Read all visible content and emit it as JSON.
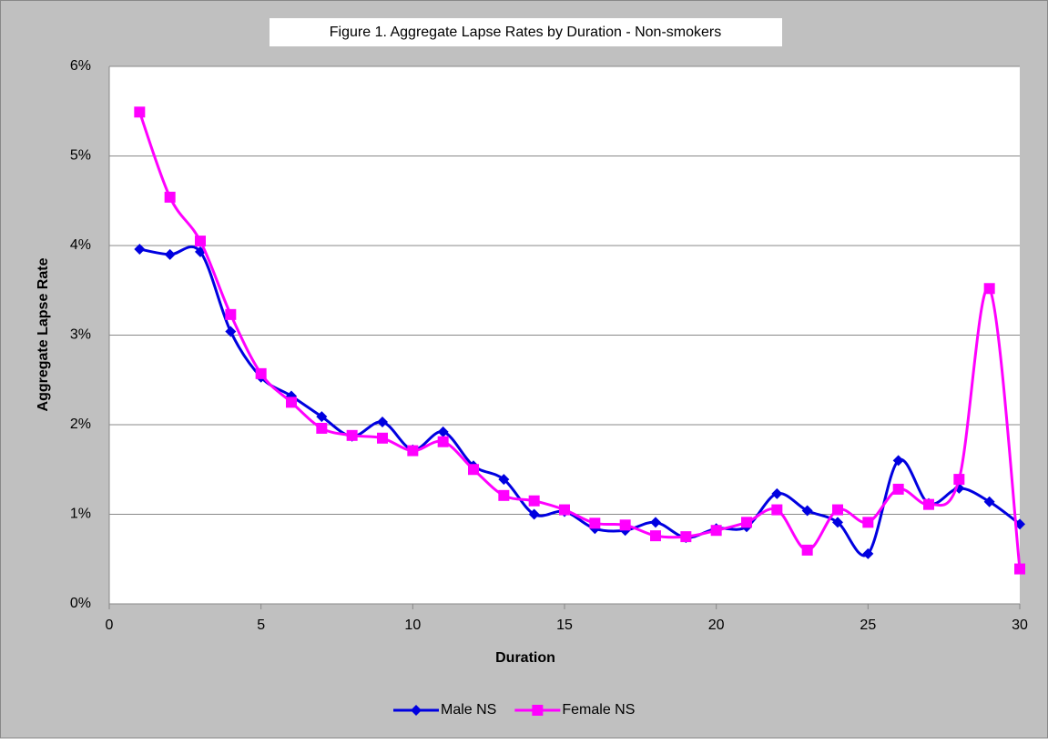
{
  "chart_data": {
    "type": "line",
    "title": "Figure 1. Aggregate Lapse Rates by Duration - Non-smokers",
    "x_label": "Duration",
    "y_label": "Aggregate Lapse Rate",
    "x": [
      1,
      2,
      3,
      4,
      5,
      6,
      7,
      8,
      9,
      10,
      11,
      12,
      13,
      14,
      15,
      16,
      17,
      18,
      19,
      20,
      21,
      22,
      23,
      24,
      25,
      26,
      27,
      28,
      29,
      30
    ],
    "series": [
      {
        "name": "Male NS",
        "color": "#0000e0",
        "marker": "diamond",
        "values": [
          3.96,
          3.9,
          3.93,
          3.04,
          2.53,
          2.32,
          2.09,
          1.87,
          2.03,
          1.72,
          1.92,
          1.54,
          1.39,
          1.0,
          1.03,
          0.84,
          0.82,
          0.91,
          0.74,
          0.84,
          0.86,
          1.23,
          1.04,
          0.91,
          0.56,
          1.6,
          1.12,
          1.29,
          1.14,
          0.89
        ]
      },
      {
        "name": "Female NS",
        "color": "#ff00ff",
        "marker": "square",
        "values": [
          5.49,
          4.54,
          4.05,
          3.23,
          2.57,
          2.25,
          1.96,
          1.88,
          1.85,
          1.71,
          1.81,
          1.5,
          1.21,
          1.15,
          1.05,
          0.9,
          0.88,
          0.76,
          0.75,
          0.82,
          0.91,
          1.05,
          0.6,
          1.05,
          0.91,
          1.28,
          1.11,
          1.39,
          3.52,
          0.39
        ]
      }
    ],
    "xlim": [
      0,
      30
    ],
    "xticks": [
      0,
      5,
      10,
      15,
      20,
      25,
      30
    ],
    "ylim": [
      0,
      6
    ],
    "yticks": [
      {
        "value": 0,
        "label": "0%"
      },
      {
        "value": 1,
        "label": "1%"
      },
      {
        "value": 2,
        "label": "2%"
      },
      {
        "value": 3,
        "label": "3%"
      },
      {
        "value": 4,
        "label": "4%"
      },
      {
        "value": 5,
        "label": "5%"
      },
      {
        "value": 6,
        "label": "6%"
      }
    ],
    "grid": true,
    "smooth": true,
    "legend": "bottom"
  }
}
